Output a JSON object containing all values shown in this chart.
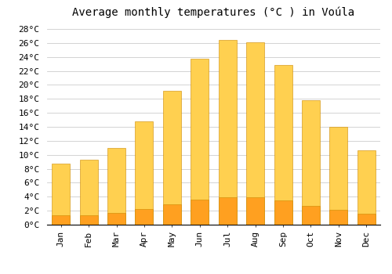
{
  "title": "Average monthly temperatures (°C ) in Voúla",
  "months": [
    "Jan",
    "Feb",
    "Mar",
    "Apr",
    "May",
    "Jun",
    "Jul",
    "Aug",
    "Sep",
    "Oct",
    "Nov",
    "Dec"
  ],
  "values": [
    8.7,
    9.3,
    11.0,
    14.8,
    19.2,
    23.7,
    26.4,
    26.1,
    22.8,
    17.8,
    14.0,
    10.6
  ],
  "bar_color_top": "#FFD050",
  "bar_color_bottom": "#FFA020",
  "bar_edge_color": "#CC8800",
  "ylim": [
    0,
    29
  ],
  "yticks": [
    0,
    2,
    4,
    6,
    8,
    10,
    12,
    14,
    16,
    18,
    20,
    22,
    24,
    26,
    28
  ],
  "background_color": "#ffffff",
  "grid_color": "#cccccc",
  "title_fontsize": 10,
  "tick_fontsize": 8,
  "font_family": "monospace"
}
